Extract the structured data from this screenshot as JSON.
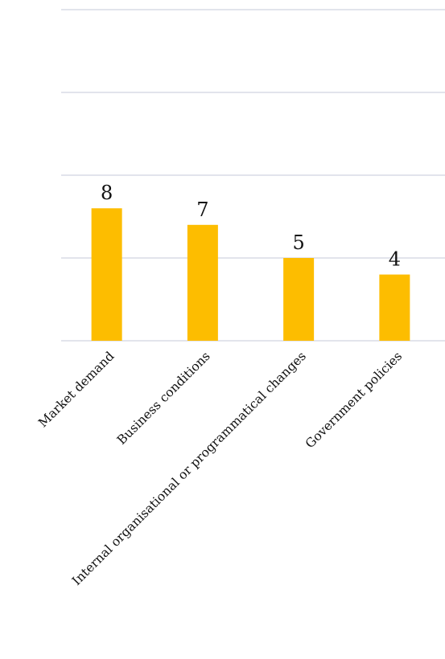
{
  "chart_data": {
    "type": "bar",
    "categories": [
      "Market demand",
      "Business conditions",
      "Internal organisational or programmatical changes",
      "Government policies"
    ],
    "values": [
      8,
      7,
      5,
      4
    ],
    "title": "",
    "xlabel": "",
    "ylabel": "",
    "ylim": [
      0,
      20
    ],
    "grid": true,
    "legend": "none",
    "bar_color": "#fdbd00",
    "grid_color": "#d9dce6"
  }
}
